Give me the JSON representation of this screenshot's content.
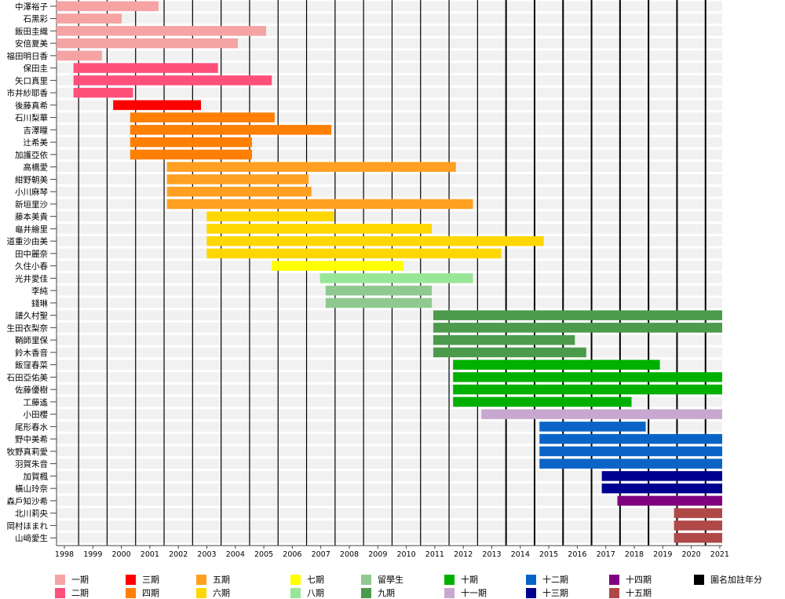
{
  "chart_data": {
    "type": "bar",
    "orientation": "horizontal-timeline",
    "title": "",
    "xlabel": "",
    "ylabel": "",
    "xlim": [
      1997.7,
      2021.2
    ],
    "x_ticks": [
      1998,
      1999,
      2000,
      2001,
      2002,
      2003,
      2004,
      2005,
      2006,
      2007,
      2008,
      2009,
      2010,
      2011,
      2012,
      2013,
      2014,
      2015,
      2016,
      2017,
      2018,
      2019,
      2020,
      2021
    ],
    "grid": true,
    "legend_position": "bottom",
    "cohort_colors": {
      "一期": "#f5a3a3",
      "二期": "#ff4f7b",
      "三期": "#ff0000",
      "四期": "#ff7f00",
      "五期": "#ffa020",
      "六期": "#ffd700",
      "七期": "#ffff00",
      "八期": "#98e698",
      "留學生": "#8fc98f",
      "九期": "#4c9a4c",
      "十期": "#00b000",
      "十一期": "#c8a8d0",
      "十二期": "#0a64c8",
      "十三期": "#000090",
      "十四期": "#800080",
      "十五期": "#b04848",
      "圍名加註年分": "#000000"
    },
    "legend": [
      "一期",
      "二期",
      "三期",
      "四期",
      "五期",
      "六期",
      "七期",
      "八期",
      "留學生",
      "九期",
      "十期",
      "十一期",
      "十二期",
      "十三期",
      "十四期",
      "十五期",
      "圍名加註年分"
    ],
    "members": [
      {
        "name": "中澤裕子",
        "cohort": "一期",
        "start": 1997.7,
        "end": 2001.3
      },
      {
        "name": "石黑彩",
        "cohort": "一期",
        "start": 1997.7,
        "end": 2000.0
      },
      {
        "name": "飯田圭織",
        "cohort": "一期",
        "start": 1997.7,
        "end": 2005.1
      },
      {
        "name": "安倍夏美",
        "cohort": "一期",
        "start": 1997.7,
        "end": 2004.1
      },
      {
        "name": "福田明日香",
        "cohort": "一期",
        "start": 1997.7,
        "end": 1999.3
      },
      {
        "name": "保田圭",
        "cohort": "二期",
        "start": 1998.3,
        "end": 2003.4
      },
      {
        "name": "矢口真里",
        "cohort": "二期",
        "start": 1998.3,
        "end": 2005.3
      },
      {
        "name": "市井紗耶香",
        "cohort": "二期",
        "start": 1998.3,
        "end": 2000.4
      },
      {
        "name": "後藤真希",
        "cohort": "三期",
        "start": 1999.7,
        "end": 2002.8
      },
      {
        "name": "石川梨華",
        "cohort": "四期",
        "start": 2000.3,
        "end": 2005.4
      },
      {
        "name": "吉澤瞳",
        "cohort": "四期",
        "start": 2000.3,
        "end": 2007.4
      },
      {
        "name": "辻希美",
        "cohort": "四期",
        "start": 2000.3,
        "end": 2004.6
      },
      {
        "name": "加護亞依",
        "cohort": "四期",
        "start": 2000.3,
        "end": 2004.6
      },
      {
        "name": "高橋愛",
        "cohort": "五期",
        "start": 2001.6,
        "end": 2011.8
      },
      {
        "name": "紺野朝美",
        "cohort": "五期",
        "start": 2001.6,
        "end": 2006.6
      },
      {
        "name": "小川麻琴",
        "cohort": "五期",
        "start": 2001.6,
        "end": 2006.7
      },
      {
        "name": "新垣里沙",
        "cohort": "五期",
        "start": 2001.6,
        "end": 2012.4
      },
      {
        "name": "藤本美貴",
        "cohort": "六期",
        "start": 2003.0,
        "end": 2007.5
      },
      {
        "name": "龜井繪里",
        "cohort": "六期",
        "start": 2003.0,
        "end": 2010.95
      },
      {
        "name": "道重沙由美",
        "cohort": "六期",
        "start": 2003.0,
        "end": 2014.9
      },
      {
        "name": "田中麗奈",
        "cohort": "六期",
        "start": 2003.0,
        "end": 2013.4
      },
      {
        "name": "久住小春",
        "cohort": "七期",
        "start": 2005.3,
        "end": 2009.95
      },
      {
        "name": "光井愛佳",
        "cohort": "八期",
        "start": 2007.0,
        "end": 2012.4
      },
      {
        "name": "李純",
        "cohort": "留學生",
        "start": 2007.2,
        "end": 2010.95
      },
      {
        "name": "錢琳",
        "cohort": "留學生",
        "start": 2007.2,
        "end": 2010.95
      },
      {
        "name": "譜久村聖",
        "cohort": "九期",
        "start": 2011.0,
        "end": 2021.2
      },
      {
        "name": "生田衣梨奈",
        "cohort": "九期",
        "start": 2011.0,
        "end": 2021.2
      },
      {
        "name": "鞘師里保",
        "cohort": "九期",
        "start": 2011.0,
        "end": 2016.0
      },
      {
        "name": "鈴木香音",
        "cohort": "九期",
        "start": 2011.0,
        "end": 2016.4
      },
      {
        "name": "飯窪春菜",
        "cohort": "十期",
        "start": 2011.7,
        "end": 2019.0
      },
      {
        "name": "石田亞佑美",
        "cohort": "十期",
        "start": 2011.7,
        "end": 2021.2
      },
      {
        "name": "佐藤優樹",
        "cohort": "十期",
        "start": 2011.7,
        "end": 2021.2
      },
      {
        "name": "工藤遙",
        "cohort": "十期",
        "start": 2011.7,
        "end": 2018.0
      },
      {
        "name": "小田櫻",
        "cohort": "十一期",
        "start": 2012.7,
        "end": 2021.2
      },
      {
        "name": "尾形春水",
        "cohort": "十二期",
        "start": 2014.75,
        "end": 2018.5
      },
      {
        "name": "野中美希",
        "cohort": "十二期",
        "start": 2014.75,
        "end": 2021.2
      },
      {
        "name": "牧野真莉愛",
        "cohort": "十二期",
        "start": 2014.75,
        "end": 2021.2
      },
      {
        "name": "羽賀朱音",
        "cohort": "十二期",
        "start": 2014.75,
        "end": 2021.2
      },
      {
        "name": "加賀楓",
        "cohort": "十三期",
        "start": 2016.95,
        "end": 2021.2
      },
      {
        "name": "橫山玲奈",
        "cohort": "十三期",
        "start": 2016.95,
        "end": 2021.2
      },
      {
        "name": "森戶知沙希",
        "cohort": "十四期",
        "start": 2017.5,
        "end": 2021.2
      },
      {
        "name": "北川莉央",
        "cohort": "十五期",
        "start": 2019.5,
        "end": 2021.2
      },
      {
        "name": "岡村ほまれ",
        "cohort": "十五期",
        "start": 2019.5,
        "end": 2021.2
      },
      {
        "name": "山﨑愛生",
        "cohort": "十五期",
        "start": 2019.5,
        "end": 2021.2
      }
    ]
  }
}
